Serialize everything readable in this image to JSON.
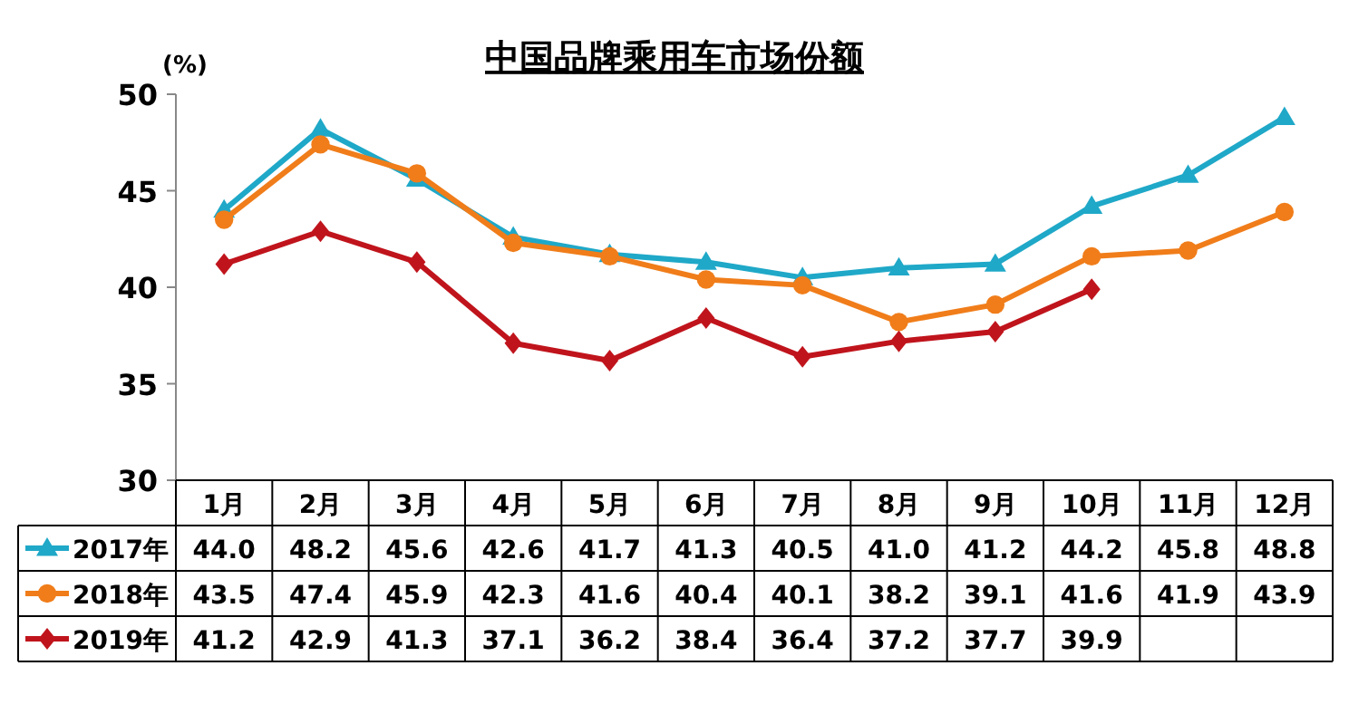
{
  "chart_data": {
    "type": "line",
    "title": "中国品牌乘用车市场份额",
    "ylabel": "(%)",
    "categories": [
      "1月",
      "2月",
      "3月",
      "4月",
      "5月",
      "6月",
      "7月",
      "8月",
      "9月",
      "10月",
      "11月",
      "12月"
    ],
    "series": [
      {
        "name": "2017年",
        "color": "#1fa8c8",
        "marker": "triangle",
        "values": [
          44.0,
          48.2,
          45.6,
          42.6,
          41.7,
          41.3,
          40.5,
          41.0,
          41.2,
          44.2,
          45.8,
          48.8
        ],
        "value_labels": [
          "44.0",
          "48.2",
          "45.6",
          "42.6",
          "41.7",
          "41.3",
          "40.5",
          "41.0",
          "41.2",
          "44.2",
          "45.8",
          "48.8"
        ]
      },
      {
        "name": "2018年",
        "color": "#f07d1a",
        "marker": "circle",
        "values": [
          43.5,
          47.4,
          45.9,
          42.3,
          41.6,
          40.4,
          40.1,
          38.2,
          39.1,
          41.6,
          41.9,
          43.9
        ],
        "value_labels": [
          "43.5",
          "47.4",
          "45.9",
          "42.3",
          "41.6",
          "40.4",
          "40.1",
          "38.2",
          "39.1",
          "41.6",
          "41.9",
          "43.9"
        ]
      },
      {
        "name": "2019年",
        "color": "#c0141c",
        "marker": "diamond",
        "values": [
          41.2,
          42.9,
          41.3,
          37.1,
          36.2,
          38.4,
          36.4,
          37.2,
          37.7,
          39.9,
          null,
          null
        ],
        "value_labels": [
          "41.2",
          "42.9",
          "41.3",
          "37.1",
          "36.2",
          "38.4",
          "36.4",
          "37.2",
          "37.7",
          "39.9",
          null,
          null
        ]
      }
    ],
    "ylim": [
      30,
      50
    ],
    "yticks": [
      30,
      35,
      40,
      45,
      50
    ],
    "grid": false,
    "legend": "bottom",
    "line_style": "solid"
  }
}
